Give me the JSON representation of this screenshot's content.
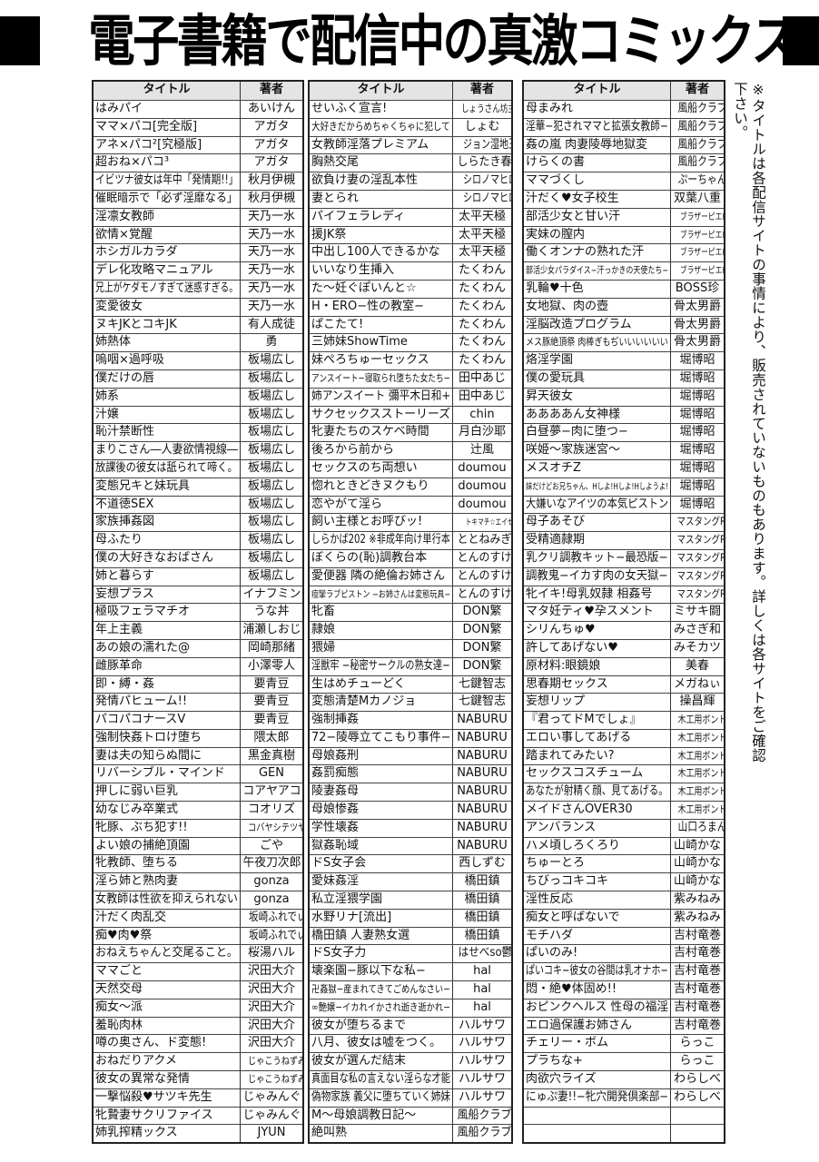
{
  "header": {
    "title": "電子書籍で配信中の真激コミックス!"
  },
  "note": "※タイトルは各配信サイトの事情により、販売されていないものもあります。詳しくは各サイトをご確認下さい。",
  "tables": [
    {
      "headers": {
        "title": "タイトル",
        "author": "著者"
      },
      "rows": [
        [
          "はみパイ",
          "あいけん"
        ],
        [
          "ママ×パコ[完全版]",
          "アガタ"
        ],
        [
          "アネ×パコ²[究極版]",
          "アガタ"
        ],
        [
          "超おね×パコ³",
          "アガタ"
        ],
        [
          "イビツナ彼女は年中「発情期!!」",
          "秋月伊槻"
        ],
        [
          "催眠暗示で「必ず淫靡なる」",
          "秋月伊槻"
        ],
        [
          "淫凛女教師",
          "天乃一水"
        ],
        [
          "欲情×覚醒",
          "天乃一水"
        ],
        [
          "ホシガルカラダ",
          "天乃一水"
        ],
        [
          "デレ化攻略マニュアル",
          "天乃一水"
        ],
        [
          "兄上がケダモノすぎて迷惑すぎる。",
          "天乃一水"
        ],
        [
          "変愛彼女",
          "天乃一水"
        ],
        [
          "ヌキJKとコキJK",
          "有人成徒"
        ],
        [
          "姉熱体",
          "勇"
        ],
        [
          "嗚咽×過呼吸",
          "板場広し"
        ],
        [
          "僕だけの唇",
          "板場広し"
        ],
        [
          "姉系",
          "板場広し"
        ],
        [
          "汁嬢",
          "板場広し"
        ],
        [
          "恥汁禁断性",
          "板場広し"
        ],
        [
          "まりこさん―人妻欲情視線―",
          "板場広し"
        ],
        [
          "放課後の彼女は舐られて啼く。",
          "板場広し"
        ],
        [
          "変態兄キと妹玩具",
          "板場広し"
        ],
        [
          "不道徳SEX",
          "板場広し"
        ],
        [
          "家族挿姦図",
          "板場広し"
        ],
        [
          "母ふたり",
          "板場広し"
        ],
        [
          "僕の大好きなおばさん",
          "板場広し"
        ],
        [
          "姉と暮らす",
          "板場広し"
        ],
        [
          "妄想プラス",
          "イナフミン"
        ],
        [
          "極吸フェラマチオ",
          "うな丼"
        ],
        [
          "年上主義",
          "浦瀬しおじ"
        ],
        [
          "あの娘の濡れた@",
          "岡崎那緒"
        ],
        [
          "雌豚革命",
          "小澤零人"
        ],
        [
          "即・縛・姦",
          "要青豆"
        ],
        [
          "発情パヒューム!!",
          "要青豆"
        ],
        [
          "パコパコナースV",
          "要青豆"
        ],
        [
          "強制快姦トロけ堕ち",
          "隈太郎"
        ],
        [
          "妻は夫の知らぬ間に",
          "黒金真樹"
        ],
        [
          "リバーシブル・マインド",
          "GEN"
        ],
        [
          "押しに弱い巨乳",
          "コアヤアコ"
        ],
        [
          "幼なじみ卒業式",
          "コオリズ"
        ],
        [
          "牝豚、ぶち犯す!!",
          "コバヤシテツヤ"
        ],
        [
          "よい娘の捕絶頂園",
          "ごや"
        ],
        [
          "牝教師、堕ちる",
          "午夜刀次郎"
        ],
        [
          "淫ら姉と熟肉妻",
          "gonza"
        ],
        [
          "女教師は性欲を抑えられない",
          "gonza"
        ],
        [
          "汁だく肉乱交",
          "坂崎ふれでぃ"
        ],
        [
          "痴♥肉♥祭",
          "坂崎ふれでぃ"
        ],
        [
          "おねえちゃんと交尾ること。",
          "桜湯ハル"
        ],
        [
          "ママごと",
          "沢田大介"
        ],
        [
          "天然交母",
          "沢田大介"
        ],
        [
          "痴女～派",
          "沢田大介"
        ],
        [
          "羞恥肉林",
          "沢田大介"
        ],
        [
          "噂の奥さん、ド変態!",
          "沢田大介"
        ],
        [
          "おねだりアクメ",
          "じゃこうねずみ"
        ],
        [
          "彼女の異常な発情",
          "じゃこうねずみ"
        ],
        [
          "一撃悩殺♥サツキ先生",
          "じゃみんぐ"
        ],
        [
          "牝贄妻サクリファイス",
          "じゃみんぐ"
        ],
        [
          "姉乳搾精ックス",
          "JYUN"
        ]
      ]
    },
    {
      "headers": {
        "title": "タイトル",
        "author": "著者"
      },
      "rows": [
        [
          "せいふく宣言!",
          "しょうさん坊主"
        ],
        [
          "大好きだからめちゃくちゃに犯して",
          "しょむ"
        ],
        [
          "女教師淫落プレミアム",
          "ジョン湿地王"
        ],
        [
          "胸熱交尾",
          "しらたき春"
        ],
        [
          "欲負け妻の淫乱本性",
          "シロノマヒロ"
        ],
        [
          "妻とられ",
          "シロノマヒロ"
        ],
        [
          "パイフェラレディ",
          "太平天極"
        ],
        [
          "援JK祭",
          "太平天極"
        ],
        [
          "中出し100人できるかな",
          "太平天極"
        ],
        [
          "いいなり生挿入",
          "たくわん"
        ],
        [
          "た～妊ぐぽいんと☆",
          "たくわん"
        ],
        [
          "H・ERO−性の教室−",
          "たくわん"
        ],
        [
          "ぱこたて!",
          "たくわん"
        ],
        [
          "三姉妹ShowTime",
          "たくわん"
        ],
        [
          "妹ぺろちゅーセックス",
          "たくわん"
        ],
        [
          "アンスイート−寝取られ堕ちた女たち−",
          "田中あじ"
        ],
        [
          "姉アンスイート 彌平木日和+",
          "田中あじ"
        ],
        [
          "サクセックスストーリーズ",
          "chin"
        ],
        [
          "牝妻たちのスケベ時間",
          "月白沙耶"
        ],
        [
          "後ろから前から",
          "辻風"
        ],
        [
          "セックスのち両想い",
          "doumou"
        ],
        [
          "惚れときどきヌクもり",
          "doumou"
        ],
        [
          "恋やがて淫ら",
          "doumou"
        ],
        [
          "飼い主様とお呼びッ!",
          "トキマチ☆エイセイ"
        ],
        [
          "しらかば202 ※非成年向け単行本",
          "ととねみぎ"
        ],
        [
          "ぼくらの(恥)調教台本",
          "とんのすけ"
        ],
        [
          "愛便器 隣の絶倫お姉さん",
          "とんのすけ"
        ],
        [
          "痙攣ラブピストン −お姉さんは変態玩具−",
          "とんのすけ"
        ],
        [
          "牝畜",
          "DON繁"
        ],
        [
          "隷娘",
          "DON繁"
        ],
        [
          "猥婦",
          "DON繁"
        ],
        [
          "淫獣牢 −秘密サークルの熟女達−",
          "DON繁"
        ],
        [
          "生はめチューどく",
          "七鍵智志"
        ],
        [
          "変態清楚Mカノジョ",
          "七鍵智志"
        ],
        [
          "強制挿姦",
          "NABURU"
        ],
        [
          "72−陵辱立てこもり事件−",
          "NABURU"
        ],
        [
          "母娘姦刑",
          "NABURU"
        ],
        [
          "姦罰痴態",
          "NABURU"
        ],
        [
          "陵妻姦母",
          "NABURU"
        ],
        [
          "母娘惨姦",
          "NABURU"
        ],
        [
          "学性壊姦",
          "NABURU"
        ],
        [
          "獄姦恥域",
          "NABURU"
        ],
        [
          "ドS女子会",
          "西しずむ"
        ],
        [
          "愛妹姦淫",
          "橋田鎮"
        ],
        [
          "私立淫猥学園",
          "橋田鎮"
        ],
        [
          "水野リナ[流出]",
          "橋田鎮"
        ],
        [
          "橋田鎮 人妻熟女選",
          "橋田鎮"
        ],
        [
          "ドS女子力",
          "はせべso鬱"
        ],
        [
          "壊楽園−豚以下な私−",
          "hal"
        ],
        [
          "卍姦獄−産まれてきてごめんなさい−",
          "hal"
        ],
        [
          "∞艶嬢−イカれイかされ逝き逝かれ−",
          "hal"
        ],
        [
          "彼女が堕ちるまで",
          "ハルサワ"
        ],
        [
          "八月、彼女は嘘をつく。",
          "ハルサワ"
        ],
        [
          "彼女が選んだ結末",
          "ハルサワ"
        ],
        [
          "真面目な私の言えない淫らな才能",
          "ハルサワ"
        ],
        [
          "偽物家族 義父に堕ちていく姉妹",
          "ハルサワ"
        ],
        [
          "M～母娘調教日記～",
          "風船クラブ"
        ],
        [
          "絶叫熟",
          "風船クラブ"
        ]
      ]
    },
    {
      "headers": {
        "title": "タイトル",
        "author": "著者"
      },
      "rows": [
        [
          "母まみれ",
          "風船クラブ"
        ],
        [
          "淫華−犯されママと拡張女教師−",
          "風船クラブ"
        ],
        [
          "姦の嵐 肉妻陵辱地獄変",
          "風船クラブ"
        ],
        [
          "けらくの書",
          "風船クラブ"
        ],
        [
          "ママづくし",
          "ぷーちゃん"
        ],
        [
          "汁だく♥女子校生",
          "双葉八重"
        ],
        [
          "部活少女と甘い汗",
          "ブラザーピエロ"
        ],
        [
          "実妹の膣内",
          "ブラザーピエロ"
        ],
        [
          "働くオンナの熟れた汗",
          "ブラザーピエロ"
        ],
        [
          "部活少女パラダイス−汗っかきの天使たち−",
          "ブラザーピエロ"
        ],
        [
          "乳輪♥十色",
          "BOSS珍"
        ],
        [
          "女地獄、肉の壺",
          "骨太男爵"
        ],
        [
          "淫脳改造プログラム",
          "骨太男爵"
        ],
        [
          "メス豚絶頂祭 肉棒ぎもぢいいいいいい",
          "骨太男爵"
        ],
        [
          "烙淫学園",
          "堀博昭"
        ],
        [
          "僕の愛玩具",
          "堀博昭"
        ],
        [
          "昇天彼女",
          "堀博昭"
        ],
        [
          "ああああん女神様",
          "堀博昭"
        ],
        [
          "白昼夢−肉に堕つ−",
          "堀博昭"
        ],
        [
          "咲姫～家族迷宮～",
          "堀博昭"
        ],
        [
          "メスオチZ",
          "堀博昭"
        ],
        [
          "妹だけどお兄ちゃん、Hしよ!Hしよ!Hしようよ!",
          "堀博昭"
        ],
        [
          "大嫌いなアイツの本気ピストン",
          "堀博昭"
        ],
        [
          "母子あそび",
          "マスタングR"
        ],
        [
          "受精適隷期",
          "マスタングR"
        ],
        [
          "乳クリ調教キット−最恐版−",
          "マスタングR"
        ],
        [
          "調教鬼−イカす肉の女天獄−",
          "マスタングR"
        ],
        [
          "牝イキ!母乳奴隷 相姦号",
          "マスタングR"
        ],
        [
          "マタ妊ティ♥孕スメント",
          "ミサキ闘"
        ],
        [
          "シリんちゅ♥",
          "みさぎ和"
        ],
        [
          "許してあげない♥",
          "みそカツ"
        ],
        [
          "原材料:眼鏡娘",
          "美春"
        ],
        [
          "思春期セックス",
          "メガねぃ"
        ],
        [
          "妄想リップ",
          "操昌輝"
        ],
        [
          "『君ってドMでしょ』",
          "木工用ボンド"
        ],
        [
          "エロい事してあげる",
          "木工用ボンド"
        ],
        [
          "踏まれてみたい?",
          "木工用ボンド"
        ],
        [
          "セックスコスチューム",
          "木工用ボンド"
        ],
        [
          "あなたが射精く顔、見てあげる。",
          "木工用ボンド"
        ],
        [
          "メイドさんOVER30",
          "木工用ボンド"
        ],
        [
          "アンバランス",
          "山口ろまん"
        ],
        [
          "ハメ頃しろくろり",
          "山崎かな"
        ],
        [
          "ちゅーとろ",
          "山崎かな"
        ],
        [
          "ちびっコキコキ",
          "山崎かな"
        ],
        [
          "淫性反応",
          "紫みねみ"
        ],
        [
          "痴女と呼ばないで",
          "紫みねみ"
        ],
        [
          "モチハダ",
          "吉村竜巻"
        ],
        [
          "ぱいのみ!",
          "吉村竜巻"
        ],
        [
          "ぱいコキ−彼女の谷間は乳オナホ−",
          "吉村竜巻"
        ],
        [
          "悶・絶♥体固め!!",
          "吉村竜巻"
        ],
        [
          "おピンクヘルス 性母の福淫",
          "吉村竜巻"
        ],
        [
          "エロ過保護お姉さん",
          "吉村竜巻"
        ],
        [
          "チェリー・ボム",
          "らっこ"
        ],
        [
          "プラちな+",
          "らっこ"
        ],
        [
          "肉欲穴ライズ",
          "わらしべ"
        ],
        [
          "にゅぷ妻!!−牝穴開発倶楽部−",
          "わらしべ"
        ],
        [
          "",
          ""
        ],
        [
          "",
          ""
        ]
      ]
    }
  ]
}
